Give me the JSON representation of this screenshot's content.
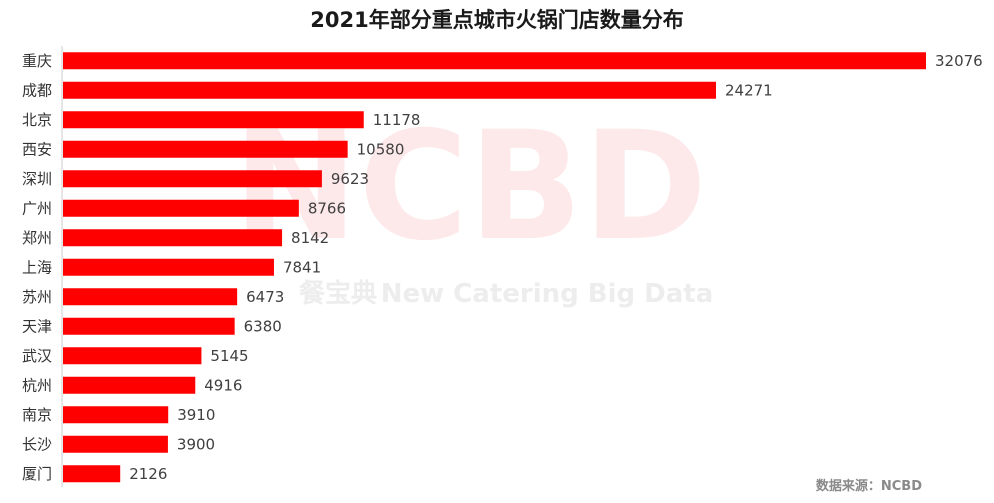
{
  "watermark": {
    "brand": "NCBD",
    "cn": "餐宝典",
    "en": "New Catering Big Data"
  },
  "source": "数据来源：NCBD",
  "colors": {
    "bar": "#ff0000",
    "axis": "#cccccc"
  },
  "chart_data": {
    "type": "bar",
    "orientation": "horizontal",
    "title": "2021年部分重点城市火锅门店数量分布",
    "xlabel": "",
    "ylabel": "",
    "categories": [
      "重庆",
      "成都",
      "北京",
      "西安",
      "深圳",
      "广州",
      "郑州",
      "上海",
      "苏州",
      "天津",
      "武汉",
      "杭州",
      "南京",
      "长沙",
      "厦门"
    ],
    "values": [
      32076,
      24271,
      11178,
      10580,
      9623,
      8766,
      8142,
      7841,
      6473,
      6380,
      5145,
      4916,
      3910,
      3900,
      2126
    ],
    "xlim": [
      0,
      32076
    ],
    "grid": false,
    "legend": "none"
  }
}
